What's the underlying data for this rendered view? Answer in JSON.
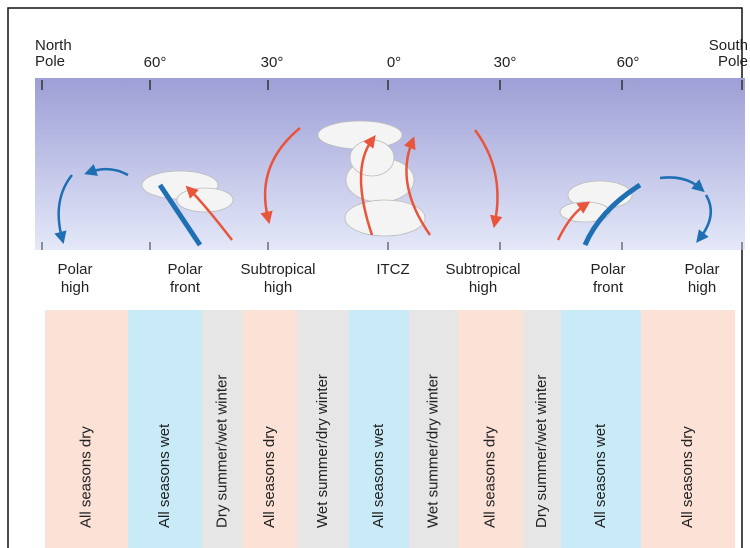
{
  "header": {
    "left": [
      "North",
      "Pole"
    ],
    "ticks": [
      "60°",
      "30°",
      "0°",
      "30°",
      "60°"
    ],
    "right": [
      "South",
      "Pole"
    ]
  },
  "zones": [
    [
      "Polar",
      "high"
    ],
    [
      "Polar",
      "front"
    ],
    [
      "Subtropical",
      "high"
    ],
    [
      "ITCZ"
    ],
    [
      "Subtropical",
      "high"
    ],
    [
      "Polar",
      "front"
    ],
    [
      "Polar",
      "high"
    ]
  ],
  "columns": [
    "All seasons dry",
    "All seasons wet",
    "Dry summer/wet winter",
    "All seasons dry",
    "Wet summer/dry winter",
    "All seasons wet",
    "Wet summer/dry winter",
    "All seasons dry",
    "Dry summer/wet winter",
    "All seasons wet",
    "All seasons dry"
  ]
}
